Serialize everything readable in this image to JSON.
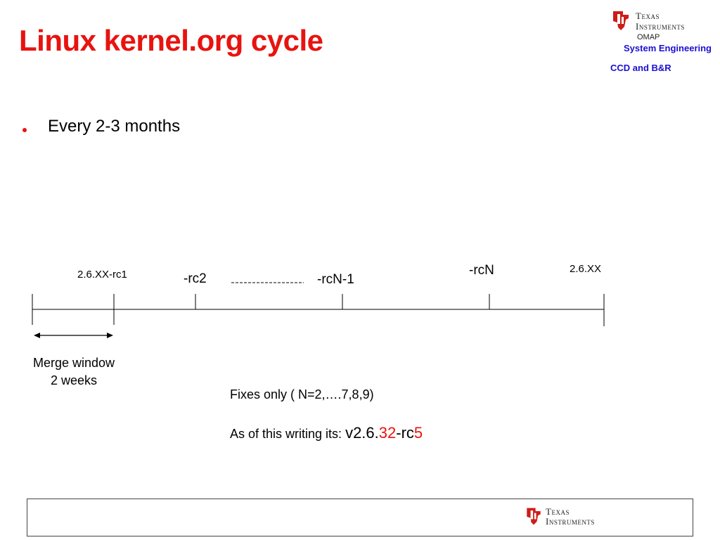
{
  "slide": {
    "title": "Linux kernel.org cycle",
    "bullet": "Every 2-3 months"
  },
  "header_brand": {
    "logo_line1": "Texas",
    "logo_line2": "Instruments",
    "product": "OMAP",
    "group": "System Engineering",
    "subgroup": "CCD and B&R"
  },
  "timeline": {
    "labels": {
      "rc1": "2.6.XX-rc1",
      "rc2": "-rc2",
      "rcN_minus_1": "-rcN-1",
      "rcN": "-rcN",
      "release": "2.6.XX"
    },
    "merge_window_line1": "Merge window",
    "merge_window_line2": "2 weeks"
  },
  "notes": {
    "fixes": "Fixes only ( N=2,….7,8,9)",
    "writing_prefix": "As of this writing its: ",
    "version_v": "v2.6.",
    "version_num": "32",
    "version_rc": "-rc",
    "version_rc_num": "5"
  },
  "footer": {
    "logo_line1": "Texas",
    "logo_line2": "Instruments"
  },
  "colors": {
    "title_red": "#e8130f",
    "heading_blue": "#1a0fd0",
    "logo_red": "#cc1d17"
  }
}
